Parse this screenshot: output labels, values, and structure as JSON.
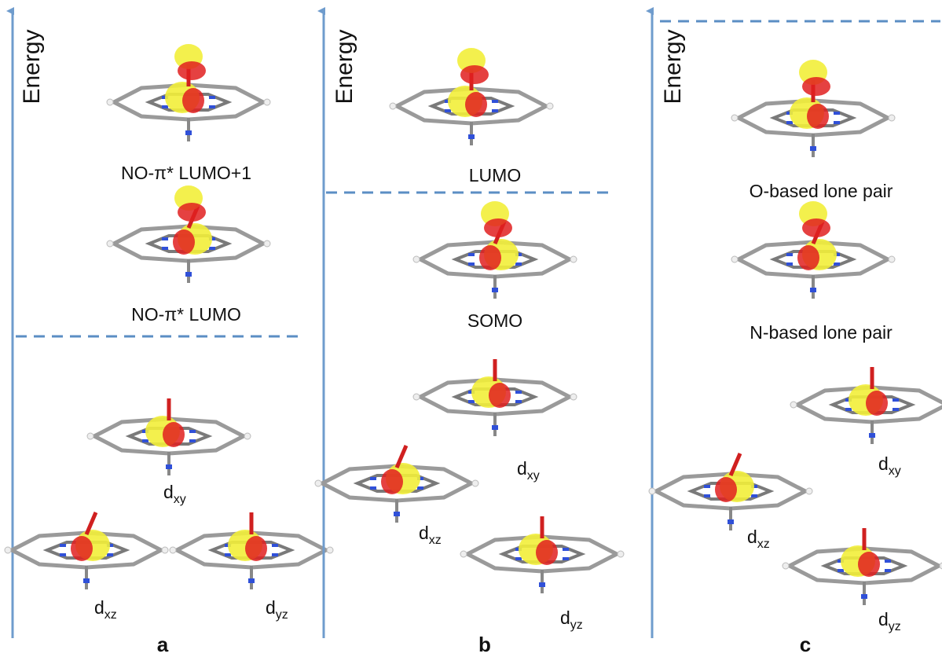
{
  "panels": [
    {
      "label": "a",
      "axis_label": "Energy",
      "orbitals": [
        {
          "label": "NO-π* LUMO+1"
        },
        {
          "label": "NO-π* LUMO"
        },
        {
          "label": {
            "main": "d",
            "sub": "xy"
          }
        },
        {
          "label": {
            "main": "d",
            "sub": "xz"
          }
        },
        {
          "label": {
            "main": "d",
            "sub": "yz"
          }
        }
      ]
    },
    {
      "label": "b",
      "axis_label": "Energy",
      "orbitals": [
        {
          "label": "LUMO"
        },
        {
          "label": "SOMO"
        },
        {
          "label": {
            "main": "d",
            "sub": "xy"
          }
        },
        {
          "label": {
            "main": "d",
            "sub": "xz"
          }
        },
        {
          "label": {
            "main": "d",
            "sub": "yz"
          }
        }
      ]
    },
    {
      "label": "c",
      "axis_label": "Energy",
      "orbitals": [
        {
          "label": "O-based lone pair"
        },
        {
          "label": "N-based lone pair"
        },
        {
          "label": {
            "main": "d",
            "sub": "xy"
          }
        },
        {
          "label": {
            "main": "d",
            "sub": "xz"
          }
        },
        {
          "label": {
            "main": "d",
            "sub": "yz"
          }
        }
      ]
    }
  ]
}
